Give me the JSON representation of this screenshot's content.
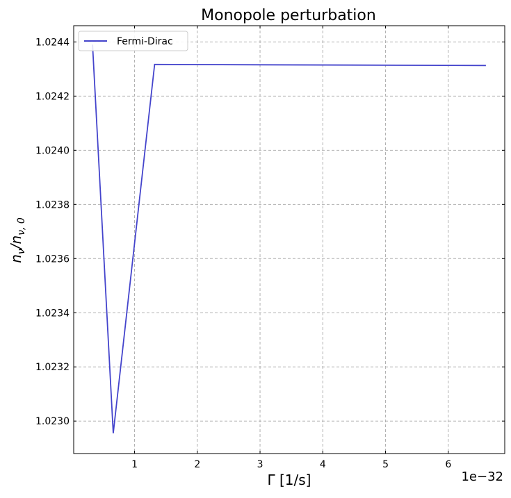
{
  "chart_data": {
    "type": "line",
    "title": "Monopole perturbation",
    "xlabel": "Γ [1/s]",
    "ylabel_main": "n",
    "ylabel_sub1": "ν",
    "ylabel_mid": "/n",
    "ylabel_sub2": "ν, 0",
    "x_offset_text": "1e−32",
    "xlim": [
      0.03,
      6.9
    ],
    "ylim": [
      1.02288,
      1.02446
    ],
    "xticks": [
      1,
      2,
      3,
      4,
      5,
      6
    ],
    "xtick_labels": [
      "1",
      "2",
      "3",
      "4",
      "5",
      "6"
    ],
    "yticks": [
      1.023,
      1.0232,
      1.0234,
      1.0236,
      1.0238,
      1.024,
      1.0242,
      1.0244
    ],
    "ytick_labels": [
      "1.0230",
      "1.0232",
      "1.0234",
      "1.0236",
      "1.0238",
      "1.0240",
      "1.0242",
      "1.0244"
    ],
    "grid": true,
    "legend_position": "upper-left",
    "series": [
      {
        "name": "Fermi-Dirac",
        "color": "#4444cc",
        "x": [
          0.33,
          0.66,
          1.32,
          6.6
        ],
        "y": [
          1.02439,
          1.022955,
          1.024317,
          1.024313
        ]
      }
    ]
  }
}
